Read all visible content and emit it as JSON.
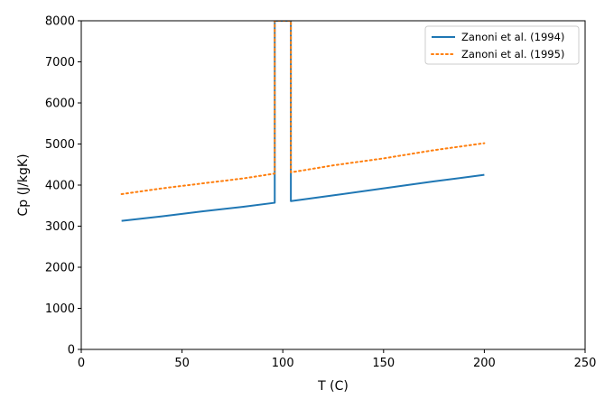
{
  "chart_data": {
    "type": "line",
    "xlabel": "T (C)",
    "ylabel": "Cp (J/kgK)",
    "xlim": [
      0,
      250
    ],
    "ylim": [
      0,
      8000
    ],
    "xticks": [
      0,
      50,
      100,
      150,
      200,
      250
    ],
    "yticks": [
      0,
      1000,
      2000,
      3000,
      4000,
      5000,
      6000,
      7000,
      8000
    ],
    "grid": false,
    "legend_position": "top-right",
    "series": [
      {
        "name": "Zanoni et al. (1994)",
        "color": "#1f77b4",
        "style": "solid",
        "x": [
          20,
          40,
          60,
          80,
          96,
          96,
          104,
          104,
          125,
          150,
          175,
          200
        ],
        "y": [
          3130,
          3240,
          3360,
          3470,
          3570,
          8000,
          8000,
          3610,
          3750,
          3920,
          4090,
          4250
        ]
      },
      {
        "name": "Zanoni et al. (1995)",
        "color": "#ff7f0e",
        "style": "dotted",
        "x": [
          20,
          40,
          60,
          80,
          96,
          96,
          104,
          104,
          125,
          150,
          175,
          200
        ],
        "y": [
          3780,
          3920,
          4040,
          4160,
          4280,
          8000,
          8000,
          4310,
          4480,
          4650,
          4850,
          5020
        ]
      }
    ]
  }
}
